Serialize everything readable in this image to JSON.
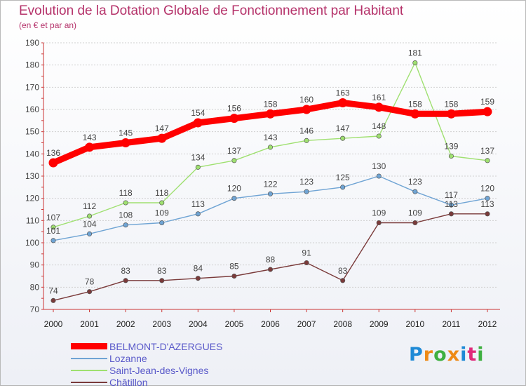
{
  "chart_data": {
    "type": "line",
    "title": "Evolution de la Dotation Globale de Fonctionnement par Habitant",
    "subtitle": "(en € et par an)",
    "x": [
      "2000",
      "2001",
      "2002",
      "2003",
      "2004",
      "2005",
      "2006",
      "2007",
      "2008",
      "2009",
      "2010",
      "2011",
      "2012"
    ],
    "ylim": [
      70,
      190
    ],
    "yticks": [
      70,
      80,
      90,
      100,
      110,
      120,
      130,
      140,
      150,
      160,
      170,
      180,
      190
    ],
    "grid": "horizontal",
    "legend_position": "bottom-left",
    "series": [
      {
        "name": "BELMONT-D'AZERGUES",
        "color": "#ff0000",
        "emphasis": true,
        "values": [
          136,
          143,
          145,
          147,
          154,
          156,
          158,
          160,
          163,
          161,
          158,
          158,
          159
        ]
      },
      {
        "name": "Lozanne",
        "color": "#6fa4d4",
        "emphasis": false,
        "values": [
          101,
          104,
          108,
          109,
          113,
          120,
          122,
          123,
          125,
          130,
          123,
          117,
          120
        ]
      },
      {
        "name": "Saint-Jean-des-Vignes",
        "color": "#9fe070",
        "emphasis": false,
        "values": [
          107,
          112,
          118,
          118,
          134,
          137,
          143,
          146,
          147,
          148,
          181,
          139,
          137
        ]
      },
      {
        "name": "Châtillon",
        "color": "#7a3a3a",
        "emphasis": false,
        "values": [
          74,
          78,
          83,
          83,
          84,
          85,
          88,
          91,
          83,
          109,
          109,
          113,
          113
        ]
      }
    ]
  },
  "brand": {
    "letters": [
      "P",
      "r",
      "o",
      "x",
      "i",
      "t",
      "i"
    ],
    "colors": [
      "#1f8ad6",
      "#ee8a16",
      "#3fb040",
      "#ee8a16",
      "#1f8ad6",
      "#e02a7a",
      "#3fb040"
    ]
  }
}
